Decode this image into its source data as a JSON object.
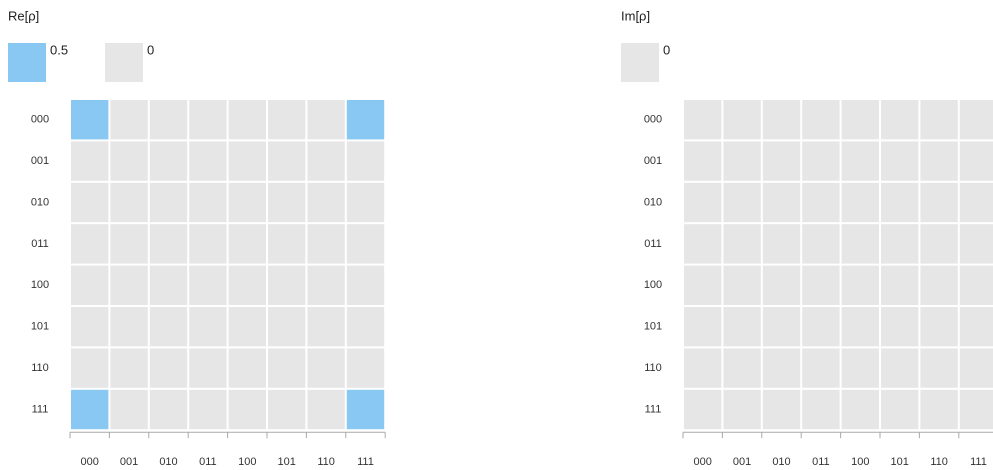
{
  "chart_data": [
    {
      "type": "heatmap",
      "title": "Re[ρ]",
      "legend": [
        {
          "value": 0.5,
          "color": "#88c8f2"
        },
        {
          "value": 0,
          "color": "#e6e6e6"
        }
      ],
      "rows": [
        "000",
        "001",
        "010",
        "011",
        "100",
        "101",
        "110",
        "111"
      ],
      "columns": [
        "000",
        "001",
        "010",
        "011",
        "100",
        "101",
        "110",
        "111"
      ],
      "values": [
        [
          0.5,
          0,
          0,
          0,
          0,
          0,
          0,
          0.5
        ],
        [
          0,
          0,
          0,
          0,
          0,
          0,
          0,
          0
        ],
        [
          0,
          0,
          0,
          0,
          0,
          0,
          0,
          0
        ],
        [
          0,
          0,
          0,
          0,
          0,
          0,
          0,
          0
        ],
        [
          0,
          0,
          0,
          0,
          0,
          0,
          0,
          0
        ],
        [
          0,
          0,
          0,
          0,
          0,
          0,
          0,
          0
        ],
        [
          0,
          0,
          0,
          0,
          0,
          0,
          0,
          0
        ],
        [
          0.5,
          0,
          0,
          0,
          0,
          0,
          0,
          0.5
        ]
      ]
    },
    {
      "type": "heatmap",
      "title": "Im[ρ]",
      "legend": [
        {
          "value": 0,
          "color": "#e6e6e6"
        }
      ],
      "rows": [
        "000",
        "001",
        "010",
        "011",
        "100",
        "101",
        "110",
        "111"
      ],
      "columns": [
        "000",
        "001",
        "010",
        "011",
        "100",
        "101",
        "110",
        "111"
      ],
      "values": [
        [
          0,
          0,
          0,
          0,
          0,
          0,
          0,
          0
        ],
        [
          0,
          0,
          0,
          0,
          0,
          0,
          0,
          0
        ],
        [
          0,
          0,
          0,
          0,
          0,
          0,
          0,
          0
        ],
        [
          0,
          0,
          0,
          0,
          0,
          0,
          0,
          0
        ],
        [
          0,
          0,
          0,
          0,
          0,
          0,
          0,
          0
        ],
        [
          0,
          0,
          0,
          0,
          0,
          0,
          0,
          0
        ],
        [
          0,
          0,
          0,
          0,
          0,
          0,
          0,
          0
        ],
        [
          0,
          0,
          0,
          0,
          0,
          0,
          0,
          0
        ]
      ]
    }
  ]
}
